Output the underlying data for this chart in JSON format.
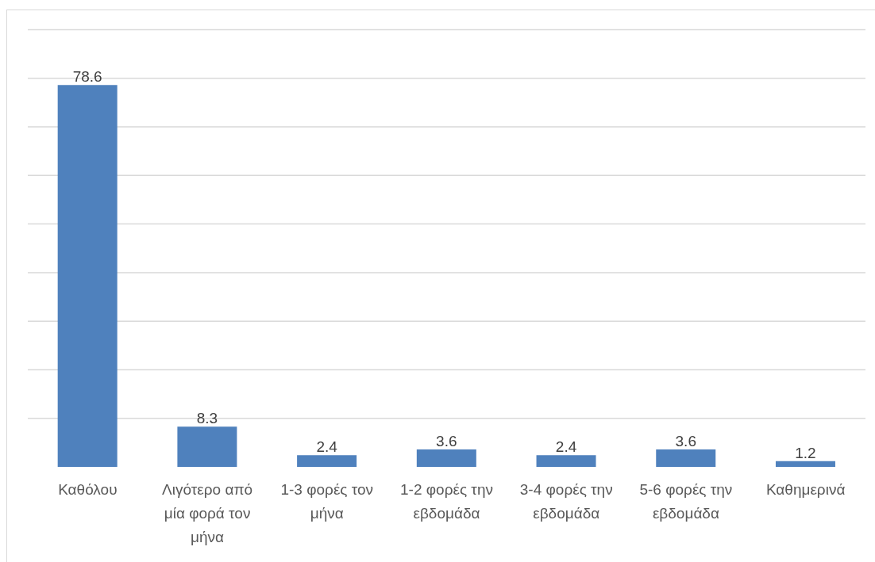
{
  "chart_data": {
    "type": "bar",
    "categories": [
      "Καθόλου",
      "Λιγότερο από μία φορά τον μήνα",
      "1-3 φορές τον μήνα",
      "1-2 φορές την εβδομάδα",
      "3-4 φορές την εβδομάδα",
      "5-6 φορές την εβδομάδα",
      "Καθημερινά"
    ],
    "values": [
      78.6,
      8.3,
      2.4,
      3.6,
      2.4,
      3.6,
      1.2
    ],
    "color": "#4f81bd",
    "data_labels": true,
    "ylim": [
      0,
      90
    ],
    "yticks": [
      {
        "value": 10,
        "label": null
      },
      {
        "value": 20,
        "label": null
      },
      {
        "value": 30,
        "label": null
      },
      {
        "value": 40,
        "label": null
      },
      {
        "value": 50,
        "label": null
      },
      {
        "value": 60,
        "label": null
      },
      {
        "value": 70,
        "label": null
      },
      {
        "value": 80,
        "label": null
      },
      {
        "value": 90,
        "label": null
      }
    ],
    "grid": "y",
    "tick_labels": "x"
  }
}
